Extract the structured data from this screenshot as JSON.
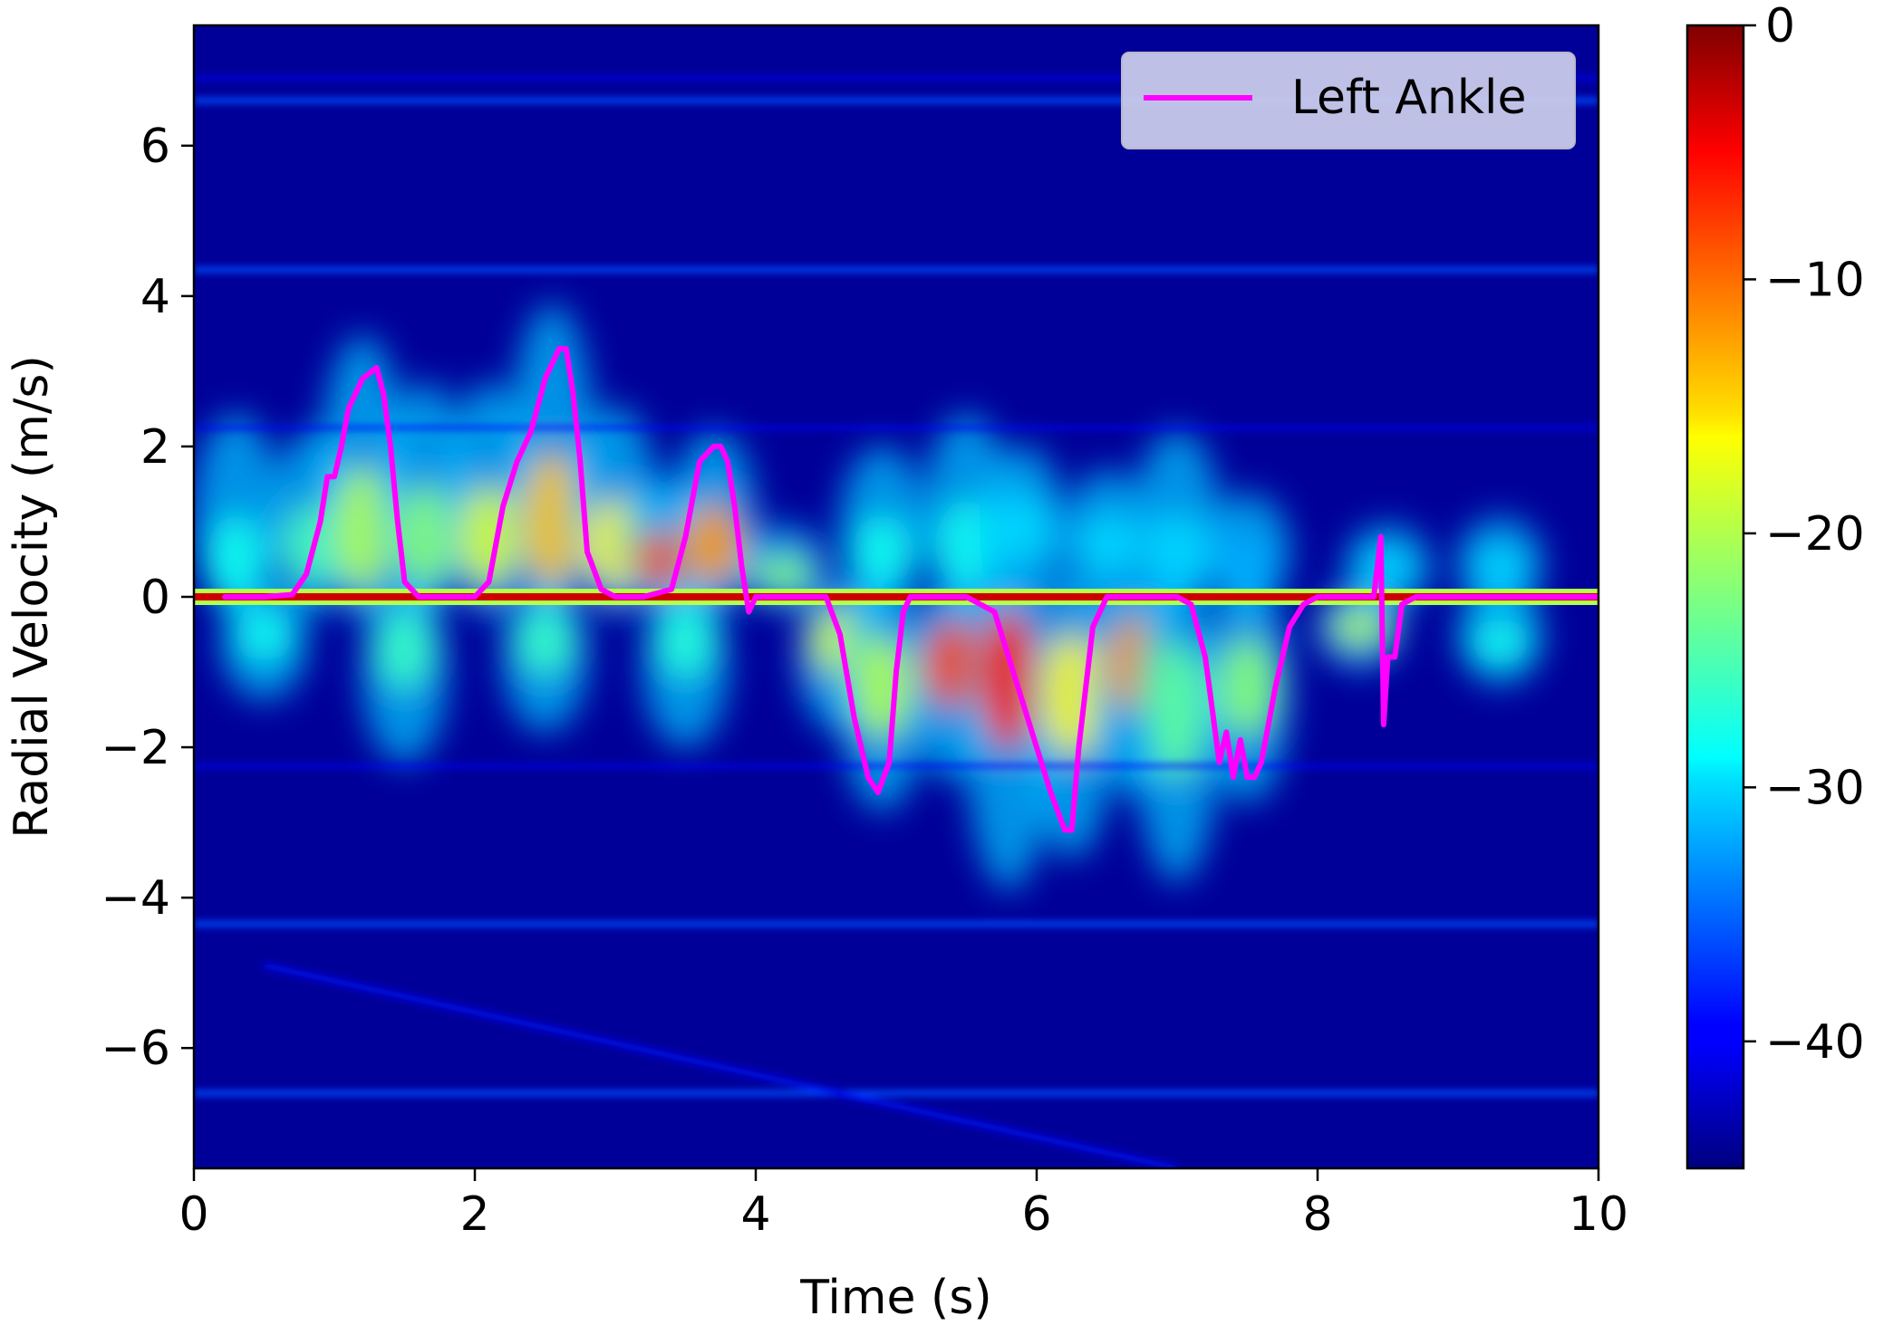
{
  "chart_data": {
    "type": "heatmap",
    "title": "",
    "xlabel": "Time (s)",
    "ylabel": "Radial Velocity (m/s)",
    "xlim": [
      0,
      10
    ],
    "ylim": [
      -7.6,
      7.6
    ],
    "xticks": [
      0,
      2,
      4,
      6,
      8,
      10
    ],
    "yticks": [
      -6,
      -4,
      -2,
      0,
      2,
      4,
      6
    ],
    "legend_position": "top-right",
    "colorscale": "jet",
    "colorbar": {
      "range": [
        -45,
        0
      ],
      "ticks": [
        0,
        -10,
        -20,
        -30,
        -40
      ]
    },
    "background_level": -44,
    "zero_band_level": -3,
    "horizontal_lines_v": [
      6.6,
      4.35,
      -4.35,
      -6.6
    ],
    "faint_lines_v": [
      6.9,
      2.25,
      -2.25
    ],
    "diagonal_line": {
      "x": [
        0.5,
        7
      ],
      "y": [
        -4.9,
        -7.6
      ]
    },
    "positive_blobs": [
      {
        "t": 0.3,
        "v": 0.5,
        "peak": 2.2,
        "level": -28
      },
      {
        "t": 0.85,
        "v": 0.7,
        "peak": 2.0,
        "level": -25
      },
      {
        "t": 1.2,
        "v": 0.9,
        "peak": 3.2,
        "level": -20
      },
      {
        "t": 1.65,
        "v": 0.8,
        "peak": 2.6,
        "level": -22
      },
      {
        "t": 2.1,
        "v": 0.8,
        "peak": 2.6,
        "level": -18
      },
      {
        "t": 2.55,
        "v": 1.0,
        "peak": 3.6,
        "level": -14
      },
      {
        "t": 3.0,
        "v": 0.7,
        "peak": 2.3,
        "level": -16
      },
      {
        "t": 3.35,
        "v": 0.5,
        "peak": 1.4,
        "level": -8
      },
      {
        "t": 3.7,
        "v": 0.7,
        "peak": 2.0,
        "level": -12
      },
      {
        "t": 4.2,
        "v": 0.3,
        "peak": 0.8,
        "level": -22
      },
      {
        "t": 4.9,
        "v": 0.6,
        "peak": 1.8,
        "level": -28
      },
      {
        "t": 5.5,
        "v": 0.7,
        "peak": 2.2,
        "level": -28
      },
      {
        "t": 5.9,
        "v": 0.9,
        "peak": 1.8,
        "level": -30
      },
      {
        "t": 6.5,
        "v": 0.7,
        "peak": 1.5,
        "level": -30
      },
      {
        "t": 7.0,
        "v": 0.6,
        "peak": 2.0,
        "level": -30
      },
      {
        "t": 7.5,
        "v": 0.5,
        "peak": 1.2,
        "level": -32
      },
      {
        "t": 8.5,
        "v": 0.4,
        "peak": 0.8,
        "level": -30
      },
      {
        "t": 9.3,
        "v": 0.4,
        "peak": 0.9,
        "level": -30
      }
    ],
    "negative_blobs": [
      {
        "t": 0.5,
        "v": -0.5,
        "peak": -1.2,
        "level": -28
      },
      {
        "t": 1.5,
        "v": -0.7,
        "peak": -2.0,
        "level": -26
      },
      {
        "t": 2.5,
        "v": -0.6,
        "peak": -1.6,
        "level": -26
      },
      {
        "t": 3.5,
        "v": -0.6,
        "peak": -1.8,
        "level": -27
      },
      {
        "t": 4.6,
        "v": -0.6,
        "peak": -1.6,
        "level": -18
      },
      {
        "t": 4.9,
        "v": -1.2,
        "peak": -2.6,
        "level": -20
      },
      {
        "t": 5.4,
        "v": -0.9,
        "peak": -2.2,
        "level": -8
      },
      {
        "t": 5.8,
        "v": -1.1,
        "peak": -3.6,
        "level": -6
      },
      {
        "t": 6.25,
        "v": -1.3,
        "peak": -3.2,
        "level": -16
      },
      {
        "t": 6.7,
        "v": -0.9,
        "peak": -2.4,
        "level": -12
      },
      {
        "t": 7.0,
        "v": -1.5,
        "peak": -3.5,
        "level": -24
      },
      {
        "t": 7.5,
        "v": -1.2,
        "peak": -2.5,
        "level": -22
      },
      {
        "t": 8.3,
        "v": -0.4,
        "peak": -0.8,
        "level": -20
      },
      {
        "t": 9.3,
        "v": -0.6,
        "peak": -1.0,
        "level": -28
      }
    ],
    "series": [
      {
        "name": "Left Ankle",
        "color": "#ff00ff",
        "x": [
          0.22,
          0.5,
          0.7,
          0.8,
          0.9,
          0.95,
          1.0,
          1.05,
          1.1,
          1.2,
          1.3,
          1.35,
          1.4,
          1.45,
          1.5,
          1.6,
          1.8,
          2.0,
          2.1,
          2.2,
          2.3,
          2.4,
          2.5,
          2.6,
          2.65,
          2.7,
          2.75,
          2.8,
          2.9,
          3.0,
          3.2,
          3.4,
          3.5,
          3.6,
          3.7,
          3.75,
          3.8,
          3.85,
          3.9,
          3.95,
          4.0,
          4.1,
          4.3,
          4.5,
          4.6,
          4.7,
          4.8,
          4.87,
          4.95,
          5.0,
          5.05,
          5.1,
          5.2,
          5.5,
          5.7,
          5.8,
          5.9,
          6.0,
          6.1,
          6.2,
          6.25,
          6.3,
          6.4,
          6.5,
          6.6,
          6.8,
          7.0,
          7.1,
          7.2,
          7.25,
          7.3,
          7.35,
          7.4,
          7.45,
          7.5,
          7.55,
          7.6,
          7.7,
          7.8,
          7.9,
          8.0,
          8.2,
          8.4,
          8.45,
          8.47,
          8.5,
          8.55,
          8.6,
          8.7,
          9.0,
          9.3,
          9.6,
          10.0
        ],
        "y": [
          0.0,
          0.0,
          0.03,
          0.3,
          1.0,
          1.6,
          1.6,
          2.0,
          2.5,
          2.9,
          3.05,
          2.7,
          2.0,
          1.0,
          0.2,
          0.0,
          0.0,
          0.0,
          0.2,
          1.2,
          1.8,
          2.2,
          2.9,
          3.3,
          3.3,
          2.7,
          1.8,
          0.6,
          0.1,
          0.0,
          0.0,
          0.1,
          0.8,
          1.8,
          2.0,
          2.0,
          1.8,
          1.2,
          0.4,
          -0.2,
          0.0,
          0.0,
          0.0,
          0.0,
          -0.5,
          -1.6,
          -2.4,
          -2.6,
          -2.2,
          -1.0,
          -0.2,
          0.0,
          0.0,
          0.0,
          -0.2,
          -0.8,
          -1.4,
          -2.0,
          -2.6,
          -3.1,
          -3.1,
          -2.0,
          -0.4,
          0.0,
          0.0,
          0.0,
          0.0,
          -0.1,
          -0.8,
          -1.5,
          -2.2,
          -1.8,
          -2.4,
          -1.9,
          -2.4,
          -2.4,
          -2.2,
          -1.2,
          -0.4,
          -0.1,
          0.0,
          0.0,
          0.0,
          0.8,
          -1.7,
          -0.8,
          -0.8,
          -0.1,
          0.0,
          0.0,
          0.0,
          0.0,
          0.0
        ]
      }
    ]
  }
}
